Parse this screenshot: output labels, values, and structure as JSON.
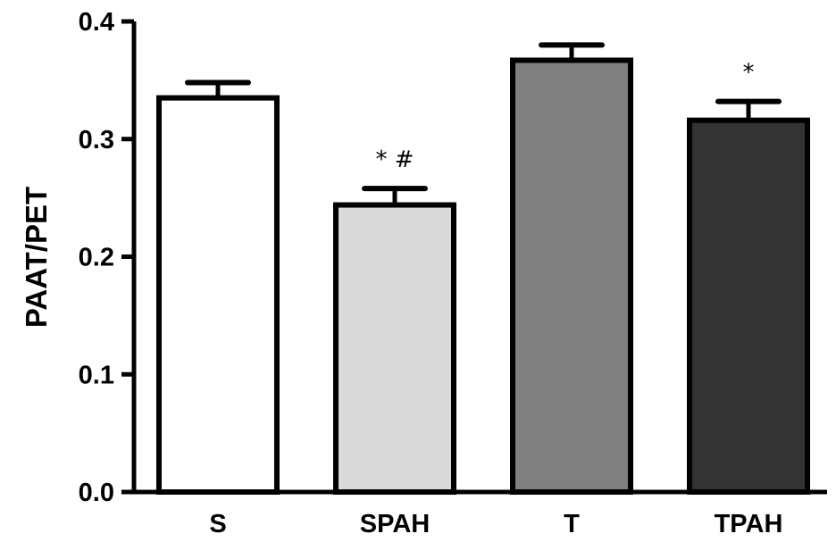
{
  "chart_data": {
    "type": "bar",
    "title": "",
    "xlabel": "",
    "ylabel": "PAAT/PET",
    "ylim": [
      0,
      0.4
    ],
    "yticks": [
      "0.0",
      "0.1",
      "0.2",
      "0.3",
      "0.4"
    ],
    "grid": false,
    "categories": [
      "S",
      "SPAH",
      "T",
      "TPAH"
    ],
    "values": [
      0.335,
      0.244,
      0.367,
      0.316
    ],
    "errors": [
      0.013,
      0.014,
      0.013,
      0.016
    ],
    "colors": [
      "#ffffff",
      "#d9d9d9",
      "#7f7f7f",
      "#333333"
    ],
    "annotations": [
      "",
      "* #",
      "",
      "*"
    ]
  }
}
